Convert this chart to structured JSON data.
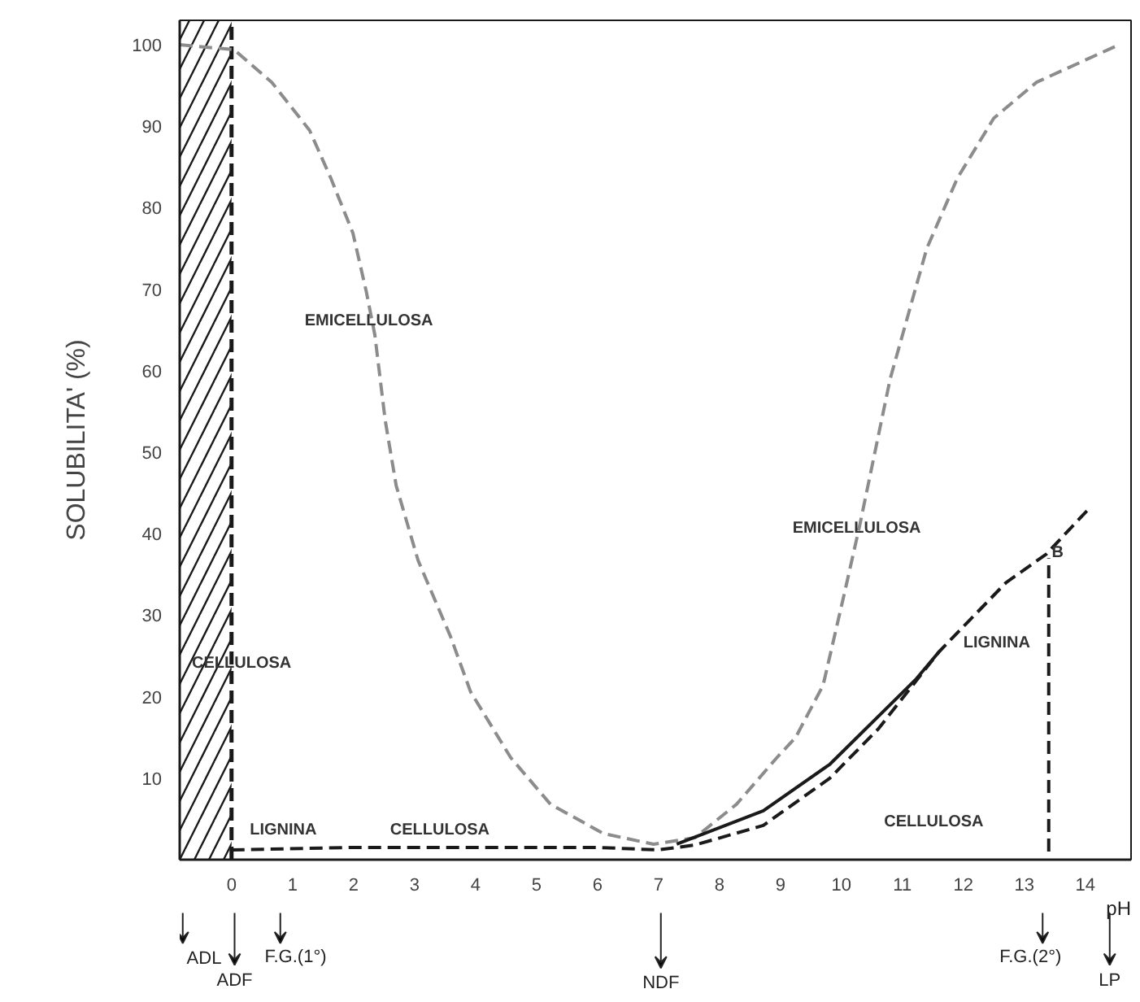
{
  "chart_data": {
    "type": "line",
    "ylabel": "SOLUBILITA' (%)",
    "xlabel": "pH",
    "xlim": [
      -0.85,
      14.75
    ],
    "ylim": [
      0,
      103
    ],
    "xticks": [
      0,
      1,
      2,
      3,
      4,
      5,
      6,
      7,
      8,
      9,
      10,
      11,
      12,
      13,
      14
    ],
    "yticks": [
      10,
      20,
      30,
      40,
      50,
      60,
      70,
      80,
      90,
      100
    ],
    "grid": false,
    "marker": "none",
    "series": [
      {
        "color": "#8c8c8c",
        "line_style": "dashed",
        "x": [
          -0.85,
          0.04,
          0.66,
          1.28,
          1.63,
          1.99,
          2.21,
          2.35,
          2.52,
          2.7,
          3.06,
          3.59,
          3.92,
          4.58,
          5.23,
          6.1,
          6.92,
          7.6,
          8.28,
          8.94,
          9.25,
          9.7,
          10.05,
          10.3,
          10.8,
          11.1,
          11.4,
          11.9,
          12.5,
          13.2,
          14.55
        ],
        "values": [
          100,
          99.4,
          95.4,
          89.5,
          83.6,
          76.9,
          69.7,
          64.4,
          53.9,
          45.9,
          36.7,
          27.4,
          20.6,
          12.5,
          6.8,
          3.2,
          1.9,
          2.7,
          6.8,
          12.5,
          15,
          21.4,
          32.7,
          41,
          59,
          67,
          75,
          83.6,
          91,
          95.4,
          100
        ]
      },
      {
        "color": "#1a1a1a",
        "line_style": "solid",
        "x": [
          7.3,
          8.72,
          9.81,
          11.23,
          11.6
        ],
        "values": [
          1.9,
          6,
          11.7,
          22.2,
          25.5
        ]
      },
      {
        "color": "#1a1a1a",
        "line_style": "dashed",
        "x": [
          0,
          2,
          4,
          6,
          7,
          7.6,
          8.72,
          9.81,
          10.6,
          11.6,
          12.7,
          13.36,
          14.05
        ],
        "values": [
          1.2,
          1.5,
          1.5,
          1.5,
          1.2,
          1.8,
          4.2,
          10,
          16,
          25.5,
          34,
          37.5,
          43
        ]
      },
      {
        "color": "#1a1a1a",
        "line_style": "dashed",
        "x": [
          13.4,
          13.4
        ],
        "values": [
          1,
          37
        ]
      }
    ],
    "ref_lines": [
      {
        "axis": "x",
        "value": 0,
        "color": "#1a1a1a",
        "line_style": "dashed"
      }
    ],
    "bands": [
      {
        "axis": "x",
        "from": -0.85,
        "to": 0,
        "color": "#1a1a1a"
      }
    ],
    "annotations": [
      "EMICELLULOSA",
      "CELLULOSA",
      "LIGNINA",
      "CELLULOSA",
      "EMICELLULOSA",
      "LIGNINA",
      "CELLULOSA",
      "B",
      "ADL",
      "ADF",
      "F.G.(1°)",
      "NDF",
      "F.G.(2°)",
      "LP"
    ]
  }
}
